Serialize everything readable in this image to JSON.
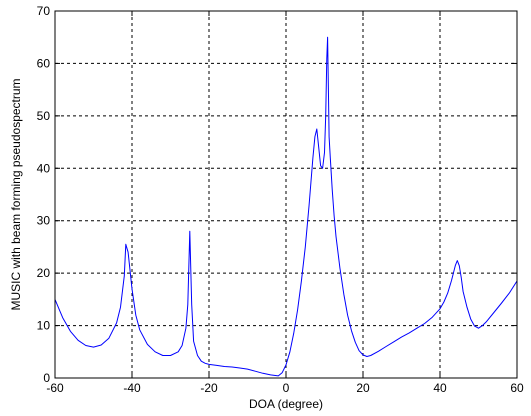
{
  "chart_data": {
    "type": "line",
    "title": "",
    "xlabel": "DOA (degree)",
    "ylabel": "MUSIC with beam forming pseudospectrum",
    "xlim": [
      -60,
      60
    ],
    "ylim": [
      0,
      70
    ],
    "xticks": [
      -60,
      -40,
      -20,
      0,
      20,
      40,
      60
    ],
    "yticks": [
      0,
      10,
      20,
      30,
      40,
      50,
      60,
      70
    ],
    "grid": true,
    "legend": "none",
    "series": [
      {
        "color": "#0000ff",
        "x": [
          -60,
          -58,
          -56,
          -54,
          -52,
          -50,
          -48,
          -46,
          -44,
          -43,
          -42,
          -41.6,
          -41,
          -40,
          -39,
          -38,
          -36,
          -34,
          -32,
          -30,
          -28,
          -27,
          -26,
          -25.5,
          -25,
          -24.5,
          -24,
          -23,
          -22,
          -21,
          -20,
          -18,
          -16,
          -14,
          -12,
          -10,
          -8,
          -6,
          -4,
          -3,
          -2,
          -1,
          0,
          1,
          2,
          3,
          4,
          5,
          6,
          7,
          7.5,
          8,
          8.5,
          9,
          9.5,
          10,
          10.3,
          10.6,
          10.8,
          11,
          11.2,
          11.5,
          12,
          12.5,
          13,
          14,
          15,
          16,
          17,
          18,
          19,
          20,
          21,
          22,
          24,
          26,
          28,
          30,
          32,
          34,
          36,
          38,
          40,
          41,
          42,
          43,
          44,
          44.5,
          45,
          45.5,
          46,
          47,
          48,
          49,
          50,
          51,
          52,
          54,
          56,
          58,
          60
        ],
        "y": [
          15,
          11.5,
          8.9,
          7.2,
          6.2,
          5.9,
          6.3,
          7.6,
          10.5,
          13.5,
          19.5,
          25.5,
          24,
          17,
          12,
          9.2,
          6.4,
          5,
          4.3,
          4.3,
          5,
          6.2,
          9.5,
          14,
          28,
          14,
          7,
          4.3,
          3.2,
          2.8,
          2.6,
          2.4,
          2.2,
          2.1,
          1.9,
          1.7,
          1.3,
          0.9,
          0.6,
          0.5,
          0.4,
          1,
          2.5,
          5,
          8.5,
          13,
          18.5,
          25,
          33,
          42,
          46,
          47.5,
          44,
          40.5,
          40,
          43,
          50,
          61,
          65,
          55,
          46,
          42,
          36,
          31,
          27,
          21,
          16,
          12,
          9,
          6.8,
          5.2,
          4.4,
          4.1,
          4.3,
          5.1,
          6,
          6.9,
          7.8,
          8.6,
          9.5,
          10.4,
          11.6,
          13.2,
          14.5,
          16.2,
          18.6,
          21.5,
          22.4,
          21.4,
          19.2,
          16.5,
          13.5,
          11.2,
          9.9,
          9.5,
          10,
          10.7,
          12.5,
          14.3,
          16.2,
          18.5
        ]
      }
    ]
  }
}
